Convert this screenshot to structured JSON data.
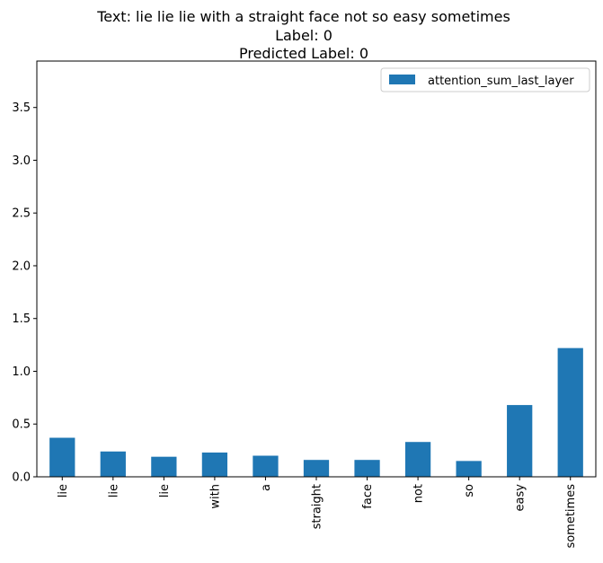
{
  "chart_data": {
    "type": "bar",
    "title_lines": [
      "Text: lie lie lie with a straight face not so easy sometimes",
      "Label: 0",
      "Predicted Label: 0"
    ],
    "categories": [
      "lie",
      "lie",
      "lie",
      "with",
      "a",
      "straight",
      "face",
      "not",
      "so",
      "easy",
      "sometimes"
    ],
    "series": [
      {
        "name": "attention_sum_last_layer",
        "color": "#1f77b4",
        "values": [
          0.37,
          0.24,
          0.19,
          0.23,
          0.2,
          0.16,
          0.16,
          0.33,
          0.15,
          0.68,
          1.22
        ]
      }
    ],
    "y_ticks": [
      "0.0",
      "0.5",
      "1.0",
      "1.5",
      "2.0",
      "2.5",
      "3.0",
      "3.5"
    ],
    "ylim": [
      0,
      3.94
    ],
    "xlabel": "",
    "ylabel": "",
    "grid": false,
    "legend_position": "top-right"
  }
}
